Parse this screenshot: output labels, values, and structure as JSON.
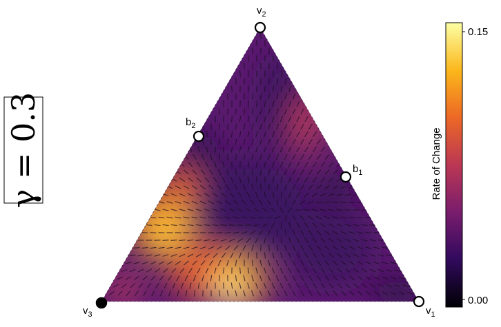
{
  "panel": {
    "gamma_label": "γ = 0.3"
  },
  "simplex": {
    "vertices": [
      {
        "id": "v1",
        "base": "v",
        "sub": "1",
        "filled": false
      },
      {
        "id": "v2",
        "base": "v",
        "sub": "2",
        "filled": false
      },
      {
        "id": "v3",
        "base": "v",
        "sub": "3",
        "filled": true
      }
    ],
    "edge_points": [
      {
        "id": "b1",
        "base": "b",
        "sub": "1",
        "filled": false
      },
      {
        "id": "b2",
        "base": "b",
        "sub": "2",
        "filled": false
      }
    ]
  },
  "colorbar": {
    "title": "Rate of Change",
    "max_label": "0.15",
    "min_label": "0.00",
    "colormap": [
      "#000004",
      "#320a5e",
      "#781c6d",
      "#bb3754",
      "#ed6925",
      "#fbb61a",
      "#fcffa4"
    ]
  }
}
